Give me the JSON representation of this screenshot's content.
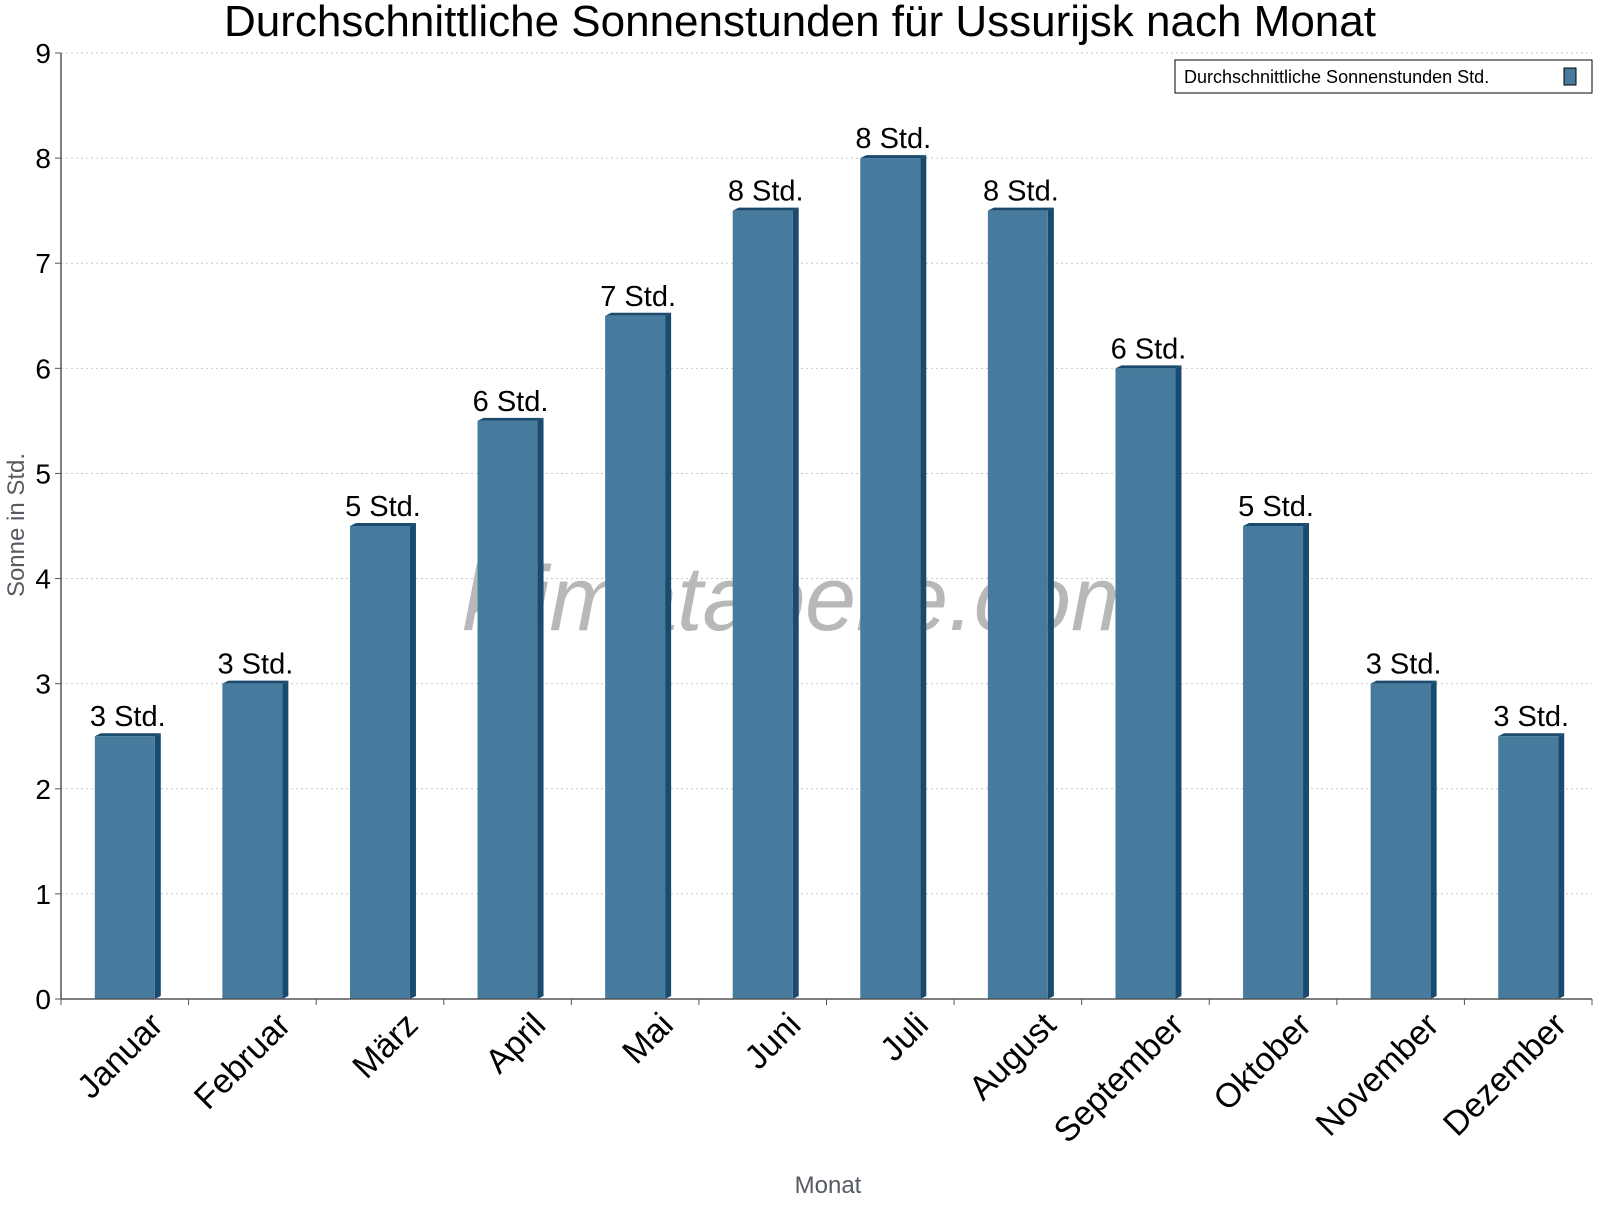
{
  "chart_data": {
    "type": "bar",
    "title": "Durchschnittliche Sonnenstunden für Ussurijsk nach Monat",
    "xlabel": "Monat",
    "ylabel": "Sonne in Std.",
    "categories": [
      "Januar",
      "Februar",
      "März",
      "April",
      "Mai",
      "Juni",
      "Juli",
      "August",
      "September",
      "Oktober",
      "November",
      "Dezember"
    ],
    "series": [
      {
        "name": "Durchschnittliche Sonnenstunden Std.",
        "values": [
          2.5,
          3.0,
          4.5,
          5.5,
          6.5,
          7.5,
          8.0,
          7.5,
          6.0,
          4.5,
          3.0,
          2.5
        ],
        "labels": [
          "3 Std.",
          "3 Std.",
          "5 Std.",
          "6 Std.",
          "7 Std.",
          "8 Std.",
          "8 Std.",
          "8 Std.",
          "6 Std.",
          "5 Std.",
          "3 Std.",
          "3 Std."
        ]
      }
    ],
    "ylim": [
      0,
      9
    ],
    "yticks": [
      "0",
      "1",
      "2",
      "3",
      "4",
      "5",
      "6",
      "7",
      "8",
      "9"
    ],
    "grid": true,
    "legend_position": "top-right",
    "bar_color": "#467b9d",
    "bar_edge_color": "#1a4a6e"
  },
  "watermark": "klimatabelle.com"
}
